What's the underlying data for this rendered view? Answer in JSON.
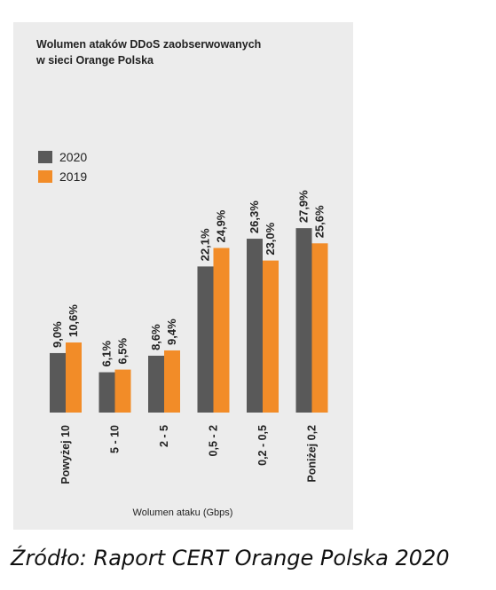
{
  "chart_data": {
    "type": "bar",
    "title_lines": [
      "Wolumen ataków DDoS zaobserwowanych",
      "w sieci Orange Polska"
    ],
    "xlabel": "Wolumen ataku (Gbps)",
    "ylabel": "",
    "categories": [
      "Powyżej 10",
      "5 - 10",
      "2 - 5",
      "0,5 - 2",
      "0,2 - 0,5",
      "Poniżej 0,2"
    ],
    "series": [
      {
        "name": "2020",
        "color": "#595959",
        "values": [
          9.0,
          6.1,
          8.6,
          22.1,
          26.3,
          27.9
        ],
        "labels": [
          "9,0%",
          "6,1%",
          "8,6%",
          "22,1%",
          "26,3%",
          "27,9%"
        ]
      },
      {
        "name": "2019",
        "color": "#f28c28",
        "values": [
          10.6,
          6.5,
          9.4,
          24.9,
          23.0,
          25.6
        ],
        "labels": [
          "10,6%",
          "6,5%",
          "9,4%",
          "24,9%",
          "23,0%",
          "25,6%"
        ]
      }
    ],
    "ylim": [
      0,
      30
    ],
    "grid": false,
    "legend_placement": "top-left"
  },
  "source_caption": "Źródło: Raport CERT Orange Polska 2020"
}
